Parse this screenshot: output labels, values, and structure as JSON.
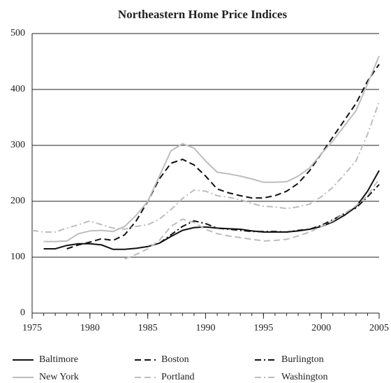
{
  "chart_data": {
    "type": "line",
    "title": "Northeastern Home Price Indices",
    "x": [
      1975,
      1976,
      1977,
      1978,
      1979,
      1980,
      1981,
      1982,
      1983,
      1984,
      1985,
      1986,
      1987,
      1988,
      1989,
      1990,
      1991,
      1992,
      1993,
      1994,
      1995,
      1996,
      1997,
      1998,
      1999,
      2000,
      2001,
      2002,
      2003,
      2004,
      2005
    ],
    "xlim": [
      1975,
      2005
    ],
    "xticks": [
      1975,
      1980,
      1985,
      1990,
      1995,
      2000,
      2005
    ],
    "ylim": [
      0,
      500
    ],
    "yticks": [
      0,
      100,
      200,
      300,
      400,
      500
    ],
    "grid": true,
    "series": [
      {
        "name": "Baltimore",
        "color": "#111111",
        "dash": "solid",
        "values": [
          null,
          115,
          115,
          121,
          124,
          124,
          122,
          114,
          114,
          116,
          119,
          125,
          137,
          148,
          153,
          154,
          152,
          151,
          150,
          147,
          145,
          145,
          145,
          147,
          150,
          155,
          163,
          175,
          190,
          218,
          255
        ]
      },
      {
        "name": "Boston",
        "color": "#111111",
        "dash": "dashed",
        "values": [
          null,
          null,
          null,
          115,
          122,
          127,
          133,
          130,
          140,
          165,
          200,
          240,
          268,
          275,
          265,
          245,
          222,
          215,
          210,
          206,
          206,
          210,
          218,
          232,
          255,
          285,
          315,
          345,
          375,
          415,
          445
        ]
      },
      {
        "name": "Burlington",
        "color": "#111111",
        "dash": "dashdot",
        "values": [
          null,
          null,
          null,
          null,
          null,
          null,
          null,
          null,
          null,
          null,
          null,
          125,
          140,
          155,
          165,
          160,
          152,
          150,
          148,
          146,
          146,
          146,
          145,
          148,
          150,
          157,
          167,
          178,
          188,
          208,
          230
        ]
      },
      {
        "name": "New York",
        "color": "#bdbdbd",
        "dash": "solid",
        "values": [
          null,
          128,
          128,
          129,
          142,
          147,
          148,
          146,
          155,
          175,
          200,
          245,
          290,
          303,
          295,
          272,
          252,
          249,
          245,
          240,
          234,
          234,
          235,
          245,
          260,
          285,
          308,
          335,
          362,
          410,
          460
        ]
      },
      {
        "name": "Portland",
        "color": "#bdbdbd",
        "dash": "dashed",
        "values": [
          null,
          null,
          null,
          null,
          null,
          null,
          null,
          null,
          97,
          105,
          115,
          130,
          155,
          168,
          162,
          150,
          142,
          138,
          135,
          132,
          129,
          130,
          132,
          138,
          145,
          155,
          165,
          178,
          192,
          210,
          240
        ]
      },
      {
        "name": "Washington",
        "color": "#bdbdbd",
        "dash": "dashdot",
        "values": [
          148,
          145,
          145,
          152,
          158,
          165,
          158,
          152,
          150,
          155,
          158,
          168,
          185,
          205,
          220,
          218,
          210,
          207,
          203,
          196,
          191,
          190,
          187,
          190,
          195,
          208,
          225,
          248,
          272,
          320,
          378
        ]
      }
    ]
  }
}
